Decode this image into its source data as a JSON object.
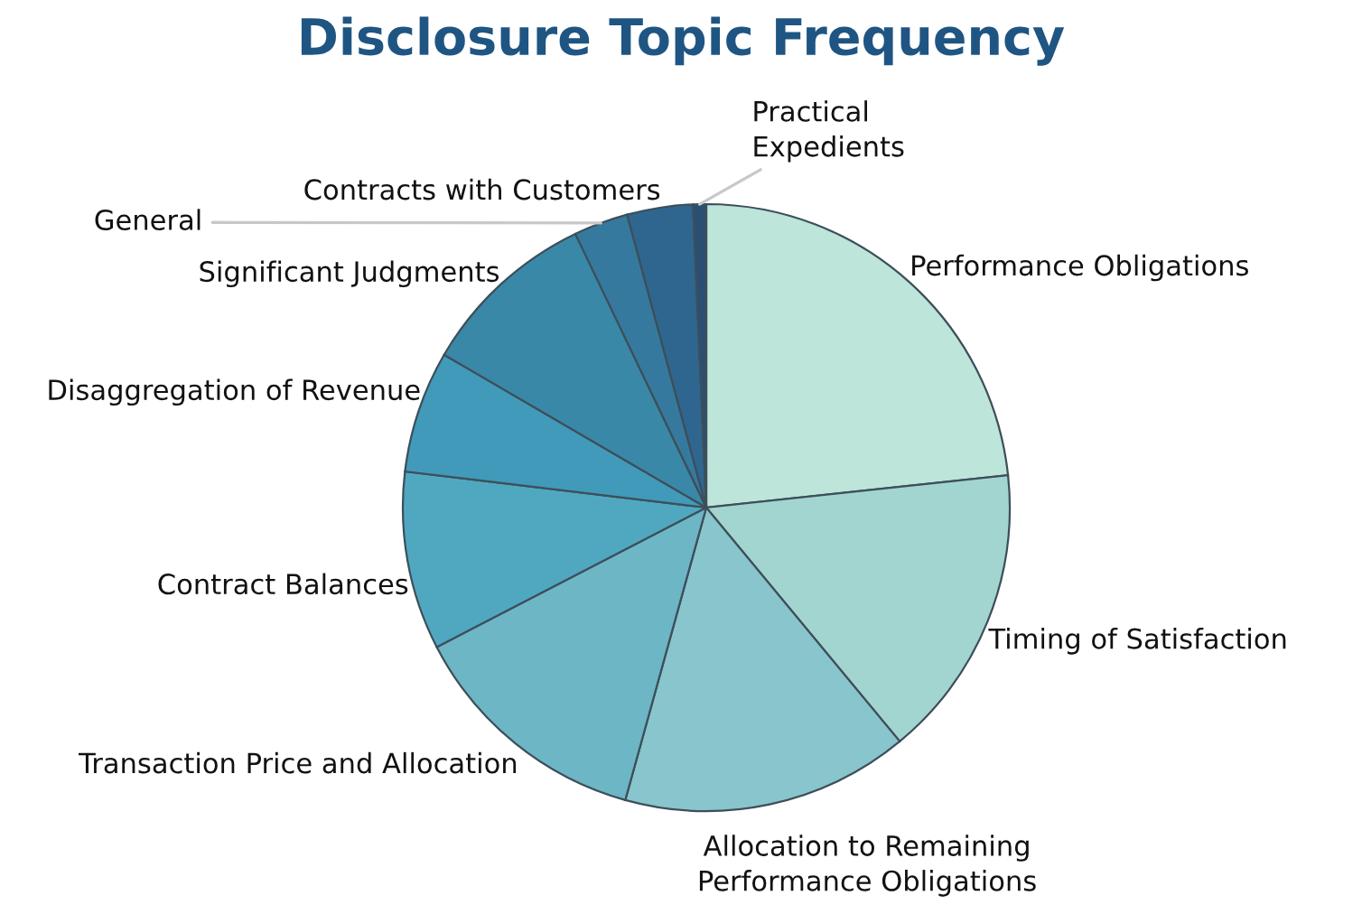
{
  "chart_data": {
    "type": "pie",
    "title": "Disclosure Topic Frequency",
    "categories": [
      "Performance Obligations",
      "Timing of Satisfaction",
      "Allocation to Remaining\nPerformance Obligations",
      "Transaction Price and Allocation",
      "Contract Balances",
      "Disaggregation of Revenue",
      "Significant Judgments",
      "General",
      "Contracts with Customers",
      "Practical\nExpedients"
    ],
    "values": [
      23.3,
      15.7,
      15.3,
      13.1,
      9.5,
      6.5,
      9.5,
      2.9,
      3.5,
      0.7
    ],
    "colors": [
      "#bde5da",
      "#a3d5d0",
      "#89c5cc",
      "#6db6c5",
      "#50a8c0",
      "#419aba",
      "#3a88a8",
      "#357a9e",
      "#2e6690",
      "#2b4f73"
    ]
  }
}
